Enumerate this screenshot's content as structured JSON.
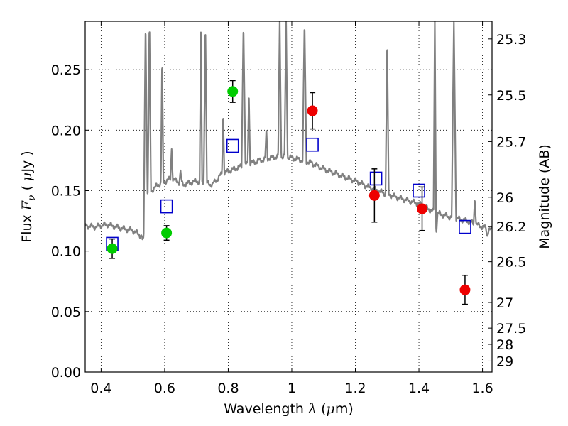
{
  "chart_data": {
    "type": "scatter",
    "title": "",
    "xlabel": {
      "pre": "Wavelength  ",
      "sym": "λ",
      "post": " (",
      "mu": "μ",
      "unit": "m)"
    },
    "ylabel": {
      "pre": "Flux  ",
      "sym": "F",
      "sub": "ν",
      "mid": "  (  ",
      "mu": "μ",
      "unit": "Jy )"
    },
    "y2label": "Magnitude (AB)",
    "xlim": [
      0.35,
      1.63
    ],
    "ylim": [
      0.0,
      0.29
    ],
    "grid": true,
    "x_ticks": [
      0.4,
      0.6,
      0.8,
      1.0,
      1.2,
      1.4,
      1.6
    ],
    "x_tick_labels": [
      "0.4",
      "0.6",
      "0.8",
      "1",
      "1.2",
      "1.4",
      "1.6"
    ],
    "y_ticks": [
      0.0,
      0.05,
      0.1,
      0.15,
      0.2,
      0.25
    ],
    "y_tick_labels": [
      "0.00",
      "0.05",
      "0.10",
      "0.15",
      "0.20",
      "0.25"
    ],
    "y2_ticks": [
      25.3,
      25.5,
      25.7,
      26.0,
      26.2,
      26.5,
      27.0,
      27.5,
      28.0,
      29.0
    ],
    "y2_tick_labels": [
      "25.3",
      "25.5",
      "25.7",
      "26",
      "26.2",
      "26.5",
      "27",
      "27.5",
      "28",
      "29"
    ],
    "series": [
      {
        "kind": "points_with_errors",
        "color": "#00cc00",
        "points": [
          {
            "x": 0.435,
            "y": 0.102,
            "err": 0.008
          },
          {
            "x": 0.606,
            "y": 0.115,
            "err": 0.006
          },
          {
            "x": 0.814,
            "y": 0.232,
            "err": 0.009
          }
        ]
      },
      {
        "kind": "points_with_errors",
        "color": "#ee0000",
        "points": [
          {
            "x": 1.065,
            "y": 0.216,
            "err": 0.015
          },
          {
            "x": 1.26,
            "y": 0.146,
            "err": 0.022
          },
          {
            "x": 1.41,
            "y": 0.135,
            "err": 0.018
          },
          {
            "x": 1.545,
            "y": 0.068,
            "err": 0.012
          }
        ]
      },
      {
        "kind": "open_squares",
        "color": "#0000cc",
        "points": [
          {
            "x": 0.435,
            "y": 0.106
          },
          {
            "x": 0.606,
            "y": 0.137
          },
          {
            "x": 0.814,
            "y": 0.187
          },
          {
            "x": 1.065,
            "y": 0.188
          },
          {
            "x": 1.265,
            "y": 0.16
          },
          {
            "x": 1.4,
            "y": 0.15
          },
          {
            "x": 1.545,
            "y": 0.12
          }
        ]
      },
      {
        "kind": "spectrum",
        "color": "#808080",
        "continuum": [
          [
            0.35,
            0.121
          ],
          [
            0.38,
            0.12
          ],
          [
            0.42,
            0.122
          ],
          [
            0.46,
            0.119
          ],
          [
            0.5,
            0.117
          ],
          [
            0.53,
            0.112
          ],
          [
            0.545,
            0.147
          ],
          [
            0.58,
            0.155
          ],
          [
            0.62,
            0.16
          ],
          [
            0.66,
            0.155
          ],
          [
            0.7,
            0.158
          ],
          [
            0.75,
            0.155
          ],
          [
            0.78,
            0.164
          ],
          [
            0.82,
            0.168
          ],
          [
            0.86,
            0.172
          ],
          [
            0.9,
            0.175
          ],
          [
            0.95,
            0.178
          ],
          [
            0.98,
            0.178
          ],
          [
            1.02,
            0.176
          ],
          [
            1.06,
            0.173
          ],
          [
            1.1,
            0.168
          ],
          [
            1.15,
            0.163
          ],
          [
            1.2,
            0.158
          ],
          [
            1.25,
            0.152
          ],
          [
            1.3,
            0.147
          ],
          [
            1.35,
            0.143
          ],
          [
            1.4,
            0.139
          ],
          [
            1.45,
            0.132
          ],
          [
            1.5,
            0.128
          ],
          [
            1.55,
            0.125
          ],
          [
            1.6,
            0.12
          ],
          [
            1.63,
            0.117
          ]
        ],
        "lines": [
          {
            "x": 0.54,
            "h": 0.29,
            "w": 0.006
          },
          {
            "x": 0.552,
            "h": 0.29,
            "w": 0.005
          },
          {
            "x": 0.592,
            "h": 0.26,
            "w": 0.004
          },
          {
            "x": 0.622,
            "h": 0.185,
            "w": 0.004
          },
          {
            "x": 0.65,
            "h": 0.166,
            "w": 0.004
          },
          {
            "x": 0.714,
            "h": 0.28,
            "w": 0.004
          },
          {
            "x": 0.728,
            "h": 0.29,
            "w": 0.005
          },
          {
            "x": 0.784,
            "h": 0.215,
            "w": 0.004
          },
          {
            "x": 0.848,
            "h": 0.29,
            "w": 0.006
          },
          {
            "x": 0.865,
            "h": 0.23,
            "w": 0.004
          },
          {
            "x": 0.92,
            "h": 0.2,
            "w": 0.004
          },
          {
            "x": 0.962,
            "h": 0.29,
            "w": 0.005
          },
          {
            "x": 0.982,
            "h": 0.29,
            "w": 0.005
          },
          {
            "x": 1.04,
            "h": 0.29,
            "w": 0.006
          },
          {
            "x": 1.3,
            "h": 0.275,
            "w": 0.005
          },
          {
            "x": 1.45,
            "h": 0.29,
            "w": 0.004
          },
          {
            "x": 1.51,
            "h": 0.29,
            "w": 0.007
          },
          {
            "x": 1.576,
            "h": 0.145,
            "w": 0.004
          }
        ],
        "dips": [
          {
            "x": 0.533,
            "d": 0.011,
            "w": 0.004
          },
          {
            "x": 1.455,
            "d": 0.014,
            "w": 0.004
          },
          {
            "x": 1.615,
            "d": 0.006,
            "w": 0.004
          }
        ]
      }
    ]
  }
}
